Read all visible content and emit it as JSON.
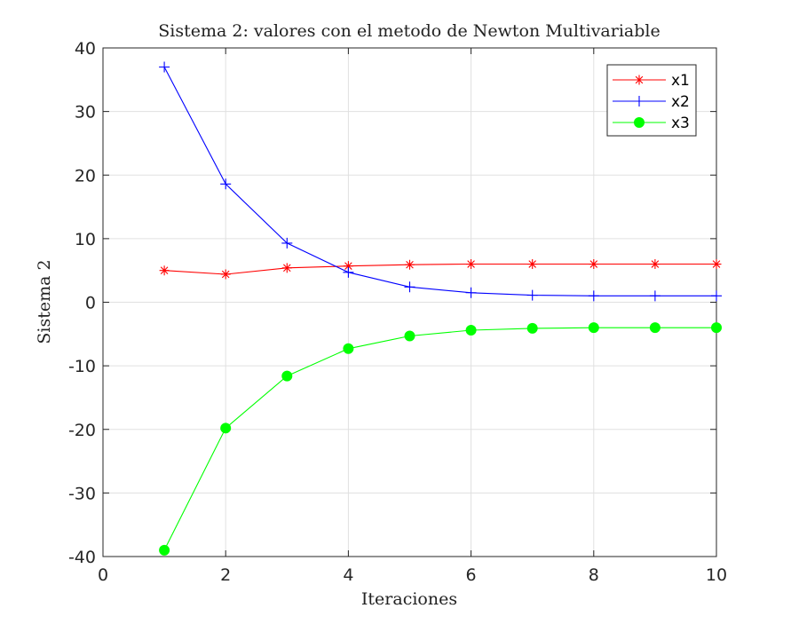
{
  "chart_data": {
    "type": "line",
    "title": "Sistema 2: valores con el metodo de Newton Multivariable",
    "xlabel": "Iteraciones",
    "ylabel": "Sistema 2",
    "xlim": [
      0,
      10
    ],
    "ylim": [
      -40,
      40
    ],
    "xticks": [
      0,
      2,
      4,
      6,
      8,
      10
    ],
    "yticks": [
      -40,
      -30,
      -20,
      -10,
      0,
      10,
      20,
      30,
      40
    ],
    "grid": true,
    "legend_position": "top-right",
    "x": [
      1,
      2,
      3,
      4,
      5,
      6,
      7,
      8,
      9,
      10
    ],
    "series": [
      {
        "name": "x1",
        "color": "#ff0000",
        "marker": "asterisk",
        "values": [
          5.0,
          4.4,
          5.4,
          5.7,
          5.9,
          6.0,
          6.0,
          6.0,
          6.0,
          6.0
        ]
      },
      {
        "name": "x2",
        "color": "#0000ff",
        "marker": "plus",
        "values": [
          37.0,
          18.6,
          9.3,
          4.7,
          2.4,
          1.5,
          1.1,
          1.0,
          1.0,
          1.0
        ]
      },
      {
        "name": "x3",
        "color": "#00ff00",
        "marker": "filled-circle",
        "values": [
          -39.0,
          -19.8,
          -11.6,
          -7.3,
          -5.3,
          -4.4,
          -4.1,
          -4.0,
          -4.0,
          -4.0
        ]
      }
    ]
  }
}
